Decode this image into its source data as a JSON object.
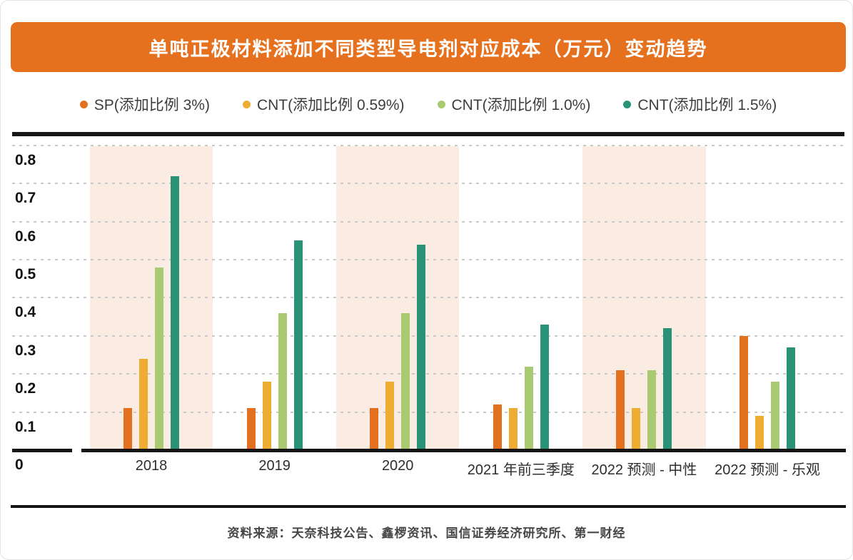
{
  "page": {
    "source_note": "资料来源：天奈科技公告、鑫椤资讯、国信证券经济研究所、第一财经"
  },
  "header": {
    "background_color": "#E5711F"
  },
  "chart_data": {
    "type": "bar",
    "title": "单吨正极材料添加不同类型导电剂对应成本（万元）变动趋势",
    "categories": [
      "2018",
      "2019",
      "2020",
      "2021 年前三季度",
      "2022 预测 - 中性",
      "2022 预测 - 乐观"
    ],
    "series": [
      {
        "name": "SP(添加比例 3%)",
        "color": "#E2701E",
        "values": [
          0.11,
          0.11,
          0.11,
          0.12,
          0.21,
          0.3
        ]
      },
      {
        "name": "CNT(添加比例 0.59%)",
        "color": "#EEAC33",
        "values": [
          0.24,
          0.18,
          0.18,
          0.11,
          0.11,
          0.09
        ]
      },
      {
        "name": "CNT(添加比例 1.0%)",
        "color": "#A9CA70",
        "values": [
          0.48,
          0.36,
          0.36,
          0.22,
          0.21,
          0.18
        ]
      },
      {
        "name": "CNT(添加比例 1.5%)",
        "color": "#2A9377",
        "values": [
          0.72,
          0.55,
          0.54,
          0.33,
          0.32,
          0.27
        ]
      }
    ],
    "ylabel": "",
    "xlabel": "",
    "ylim": [
      0,
      0.8
    ],
    "yticks": [
      0.8,
      0.7,
      0.6,
      0.5,
      0.4,
      0.3,
      0.2,
      0.1,
      0
    ],
    "grid": "horizontal-dashed",
    "legend_position": "top",
    "highlighted_categories": [
      0,
      2,
      4
    ],
    "highlight_color": "#FAECE2",
    "axis_color": "#161616"
  }
}
